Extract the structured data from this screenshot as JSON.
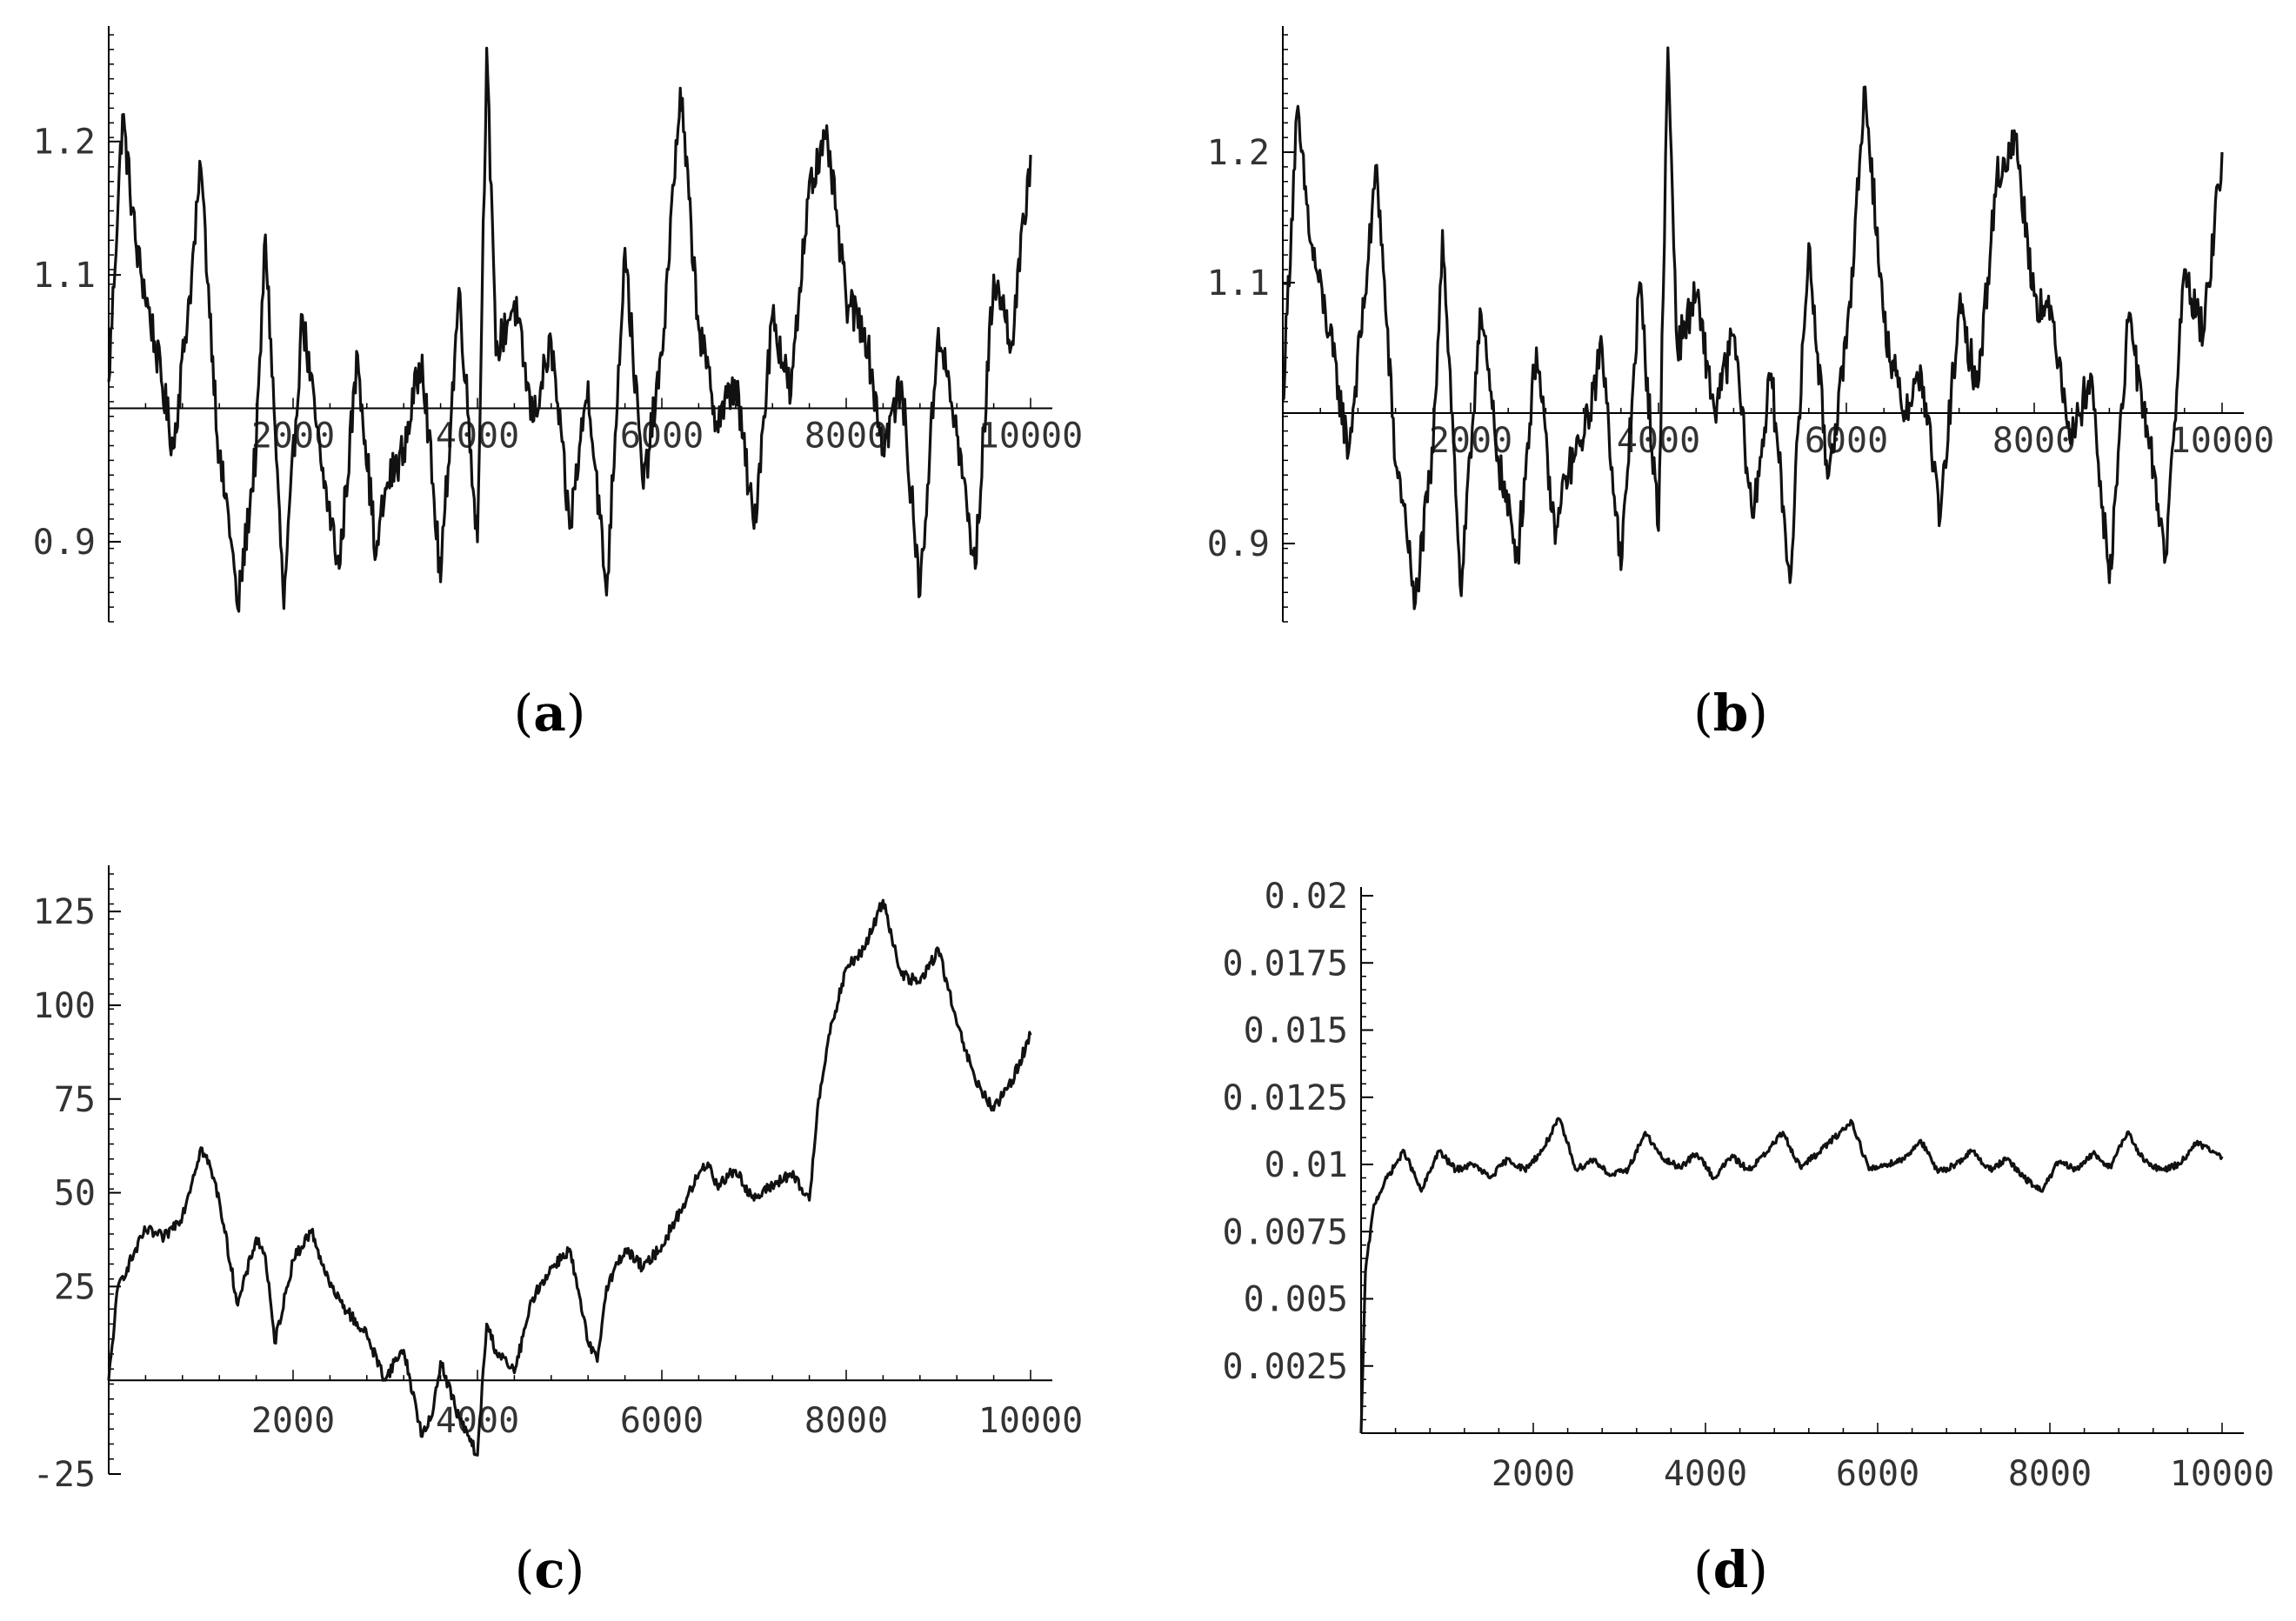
{
  "chart_data": [
    {
      "panel": "(a)",
      "type": "line",
      "title": "",
      "xlabel": "",
      "ylabel": "",
      "xlim": [
        0,
        10000
      ],
      "ylim": [
        0.84,
        1.28
      ],
      "x_ticks": [
        2000,
        4000,
        6000,
        8000,
        10000
      ],
      "y_ticks": [
        0.9,
        1.1,
        1.2
      ],
      "axis_origin": [
        0,
        1.0
      ],
      "grid": false,
      "series": [
        {
          "x": [
            0,
            150,
            300,
            500,
            700,
            900,
            1000,
            1200,
            1300,
            1400,
            1600,
            1700,
            1900,
            2100,
            2300,
            2500,
            2700,
            2900,
            3000,
            3200,
            3400,
            3600,
            3800,
            4000,
            4100,
            4200,
            4400,
            4600,
            4800,
            5000,
            5200,
            5400,
            5600,
            5800,
            6000,
            6200,
            6400,
            6600,
            6800,
            7000,
            7200,
            7400,
            7600,
            7800,
            8000,
            8200,
            8400,
            8600,
            8800,
            9000,
            9200,
            9400,
            9600,
            9800,
            10000
          ],
          "y": [
            1.02,
            1.22,
            1.12,
            1.05,
            0.97,
            1.1,
            1.18,
            0.96,
            0.92,
            0.85,
            0.97,
            1.13,
            0.85,
            1.07,
            0.96,
            0.88,
            1.04,
            0.89,
            0.94,
            0.97,
            1.04,
            0.87,
            1.09,
            0.9,
            1.27,
            1.04,
            1.08,
            0.99,
            1.05,
            0.91,
            1.02,
            0.86,
            1.12,
            0.94,
            1.04,
            1.24,
            1.06,
            0.99,
            1.02,
            0.91,
            1.07,
            1.01,
            1.17,
            1.2,
            1.08,
            1.06,
            0.97,
            1.02,
            0.86,
            1.06,
            0.98,
            0.88,
            1.1,
            1.05,
            1.19
          ]
        }
      ]
    },
    {
      "panel": "(b)",
      "type": "line",
      "title": "",
      "xlabel": "",
      "ylabel": "",
      "xlim": [
        0,
        10000
      ],
      "ylim": [
        0.84,
        1.29
      ],
      "x_ticks": [
        2000,
        4000,
        6000,
        8000,
        10000
      ],
      "y_ticks": [
        0.9,
        1.1,
        1.2
      ],
      "axis_origin": [
        0,
        1.0
      ],
      "grid": false,
      "series": [
        {
          "x": [
            0,
            150,
            300,
            500,
            700,
            900,
            1000,
            1200,
            1300,
            1400,
            1600,
            1700,
            1900,
            2100,
            2300,
            2500,
            2700,
            2900,
            3000,
            3200,
            3400,
            3600,
            3800,
            4000,
            4100,
            4200,
            4400,
            4600,
            4800,
            5000,
            5200,
            5400,
            5600,
            5800,
            6000,
            6200,
            6400,
            6600,
            6800,
            7000,
            7200,
            7400,
            7600,
            7800,
            8000,
            8200,
            8400,
            8600,
            8800,
            9000,
            9200,
            9400,
            9600,
            9800,
            10000
          ],
          "y": [
            1.01,
            1.23,
            1.13,
            1.06,
            0.97,
            1.11,
            1.19,
            0.96,
            0.93,
            0.85,
            0.97,
            1.14,
            0.86,
            1.08,
            0.96,
            0.89,
            1.05,
            0.9,
            0.95,
            0.98,
            1.05,
            0.88,
            1.1,
            0.91,
            1.28,
            1.05,
            1.09,
            1.0,
            1.06,
            0.92,
            1.03,
            0.87,
            1.13,
            0.95,
            1.05,
            1.25,
            1.07,
            1.0,
            1.03,
            0.92,
            1.08,
            1.02,
            1.18,
            1.21,
            1.09,
            1.07,
            0.98,
            1.03,
            0.87,
            1.07,
            0.99,
            0.89,
            1.11,
            1.06,
            1.2
          ]
        }
      ]
    },
    {
      "panel": "(c)",
      "type": "line",
      "title": "",
      "xlabel": "",
      "ylabel": "",
      "xlim": [
        0,
        10000
      ],
      "ylim": [
        -25,
        135
      ],
      "x_ticks": [
        2000,
        4000,
        6000,
        8000,
        10000
      ],
      "y_ticks": [
        -25,
        25,
        50,
        75,
        100,
        125
      ],
      "axis_origin": [
        0,
        0
      ],
      "grid": false,
      "series": [
        {
          "x": [
            0,
            100,
            200,
            400,
            600,
            800,
            1000,
            1100,
            1200,
            1400,
            1600,
            1700,
            1800,
            2000,
            2200,
            2400,
            2600,
            2800,
            3000,
            3100,
            3200,
            3400,
            3500,
            3600,
            3800,
            4000,
            4100,
            4200,
            4400,
            4600,
            4800,
            5000,
            5200,
            5300,
            5400,
            5600,
            5800,
            6000,
            6200,
            6400,
            6500,
            6600,
            6800,
            7000,
            7200,
            7400,
            7600,
            7700,
            7800,
            8000,
            8200,
            8400,
            8600,
            8800,
            9000,
            9200,
            9400,
            9600,
            9800,
            10000
          ],
          "y": [
            0,
            25,
            30,
            40,
            38,
            44,
            62,
            57,
            48,
            20,
            38,
            33,
            10,
            32,
            40,
            25,
            18,
            12,
            0,
            5,
            8,
            -15,
            -10,
            5,
            -10,
            -20,
            15,
            8,
            2,
            22,
            30,
            35,
            10,
            5,
            25,
            35,
            30,
            36,
            45,
            55,
            58,
            52,
            56,
            48,
            52,
            55,
            48,
            75,
            90,
            110,
            115,
            128,
            108,
            106,
            115,
            95,
            80,
            72,
            80,
            92
          ]
        }
      ]
    },
    {
      "panel": "(d)",
      "type": "line",
      "title": "",
      "xlabel": "",
      "ylabel": "",
      "xlim": [
        0,
        10000
      ],
      "ylim": [
        0,
        0.02
      ],
      "x_ticks": [
        2000,
        4000,
        6000,
        8000,
        10000
      ],
      "y_ticks": [
        0.0025,
        0.005,
        0.0075,
        0.01,
        0.0125,
        0.015,
        0.0175,
        0.02
      ],
      "axis_origin": [
        0,
        0
      ],
      "grid": false,
      "series": [
        {
          "x": [
            0,
            50,
            150,
            300,
            500,
            700,
            900,
            1100,
            1300,
            1500,
            1700,
            1900,
            2100,
            2300,
            2500,
            2700,
            2900,
            3100,
            3300,
            3500,
            3700,
            3900,
            4100,
            4300,
            4500,
            4700,
            4900,
            5100,
            5300,
            5500,
            5700,
            5900,
            6100,
            6300,
            6500,
            6700,
            6900,
            7100,
            7300,
            7500,
            7700,
            7900,
            8100,
            8300,
            8500,
            8700,
            8900,
            9100,
            9300,
            9500,
            9700,
            10000
          ],
          "y": [
            0,
            0.006,
            0.0085,
            0.0095,
            0.0105,
            0.009,
            0.0105,
            0.0098,
            0.01,
            0.0095,
            0.0102,
            0.0098,
            0.0105,
            0.0117,
            0.0098,
            0.0102,
            0.0096,
            0.0098,
            0.0112,
            0.0102,
            0.0099,
            0.0104,
            0.0095,
            0.0103,
            0.0098,
            0.0104,
            0.0112,
            0.0099,
            0.0104,
            0.011,
            0.0116,
            0.0098,
            0.01,
            0.0102,
            0.0109,
            0.0097,
            0.01,
            0.0105,
            0.0098,
            0.0102,
            0.0095,
            0.009,
            0.0101,
            0.0098,
            0.0104,
            0.0099,
            0.0112,
            0.0101,
            0.0098,
            0.01,
            0.0108,
            0.0103
          ]
        }
      ]
    }
  ]
}
